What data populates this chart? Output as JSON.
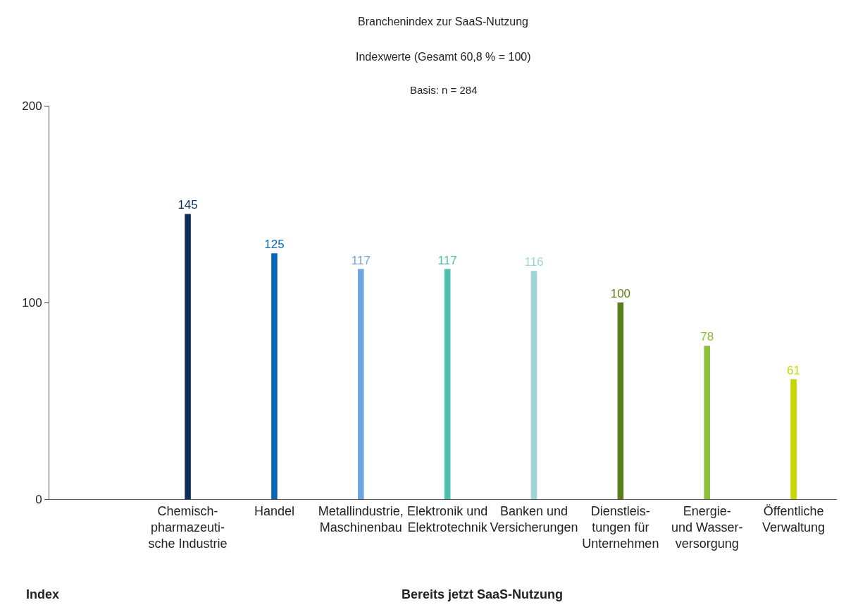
{
  "chart_data": {
    "type": "bar",
    "title": "Branchenindex zur SaaS-Nutzung",
    "subtitle": "Indexwerte (Gesamt 60,8 % = 100)",
    "annotations": [
      "Basis: n = 284"
    ],
    "xlabel": "Bereits jetzt SaaS-Nutzung",
    "ylabel": "Index",
    "categories": [
      "Chemisch-\npharmazeuti-\nsche Industrie",
      "Handel",
      "Metallindustrie,\nMaschinenbau",
      "Elektronik und\nElektrotechnik",
      "Banken und\nVersicherungen",
      "Dienstleis-\ntungen für\nUnternehmen",
      "Energie-\nund Wasser-\nversorgung",
      "Öffentliche\nVerwaltung"
    ],
    "values": [
      145,
      125,
      117,
      117,
      116,
      100,
      78,
      61
    ],
    "colors": [
      "#0b2f5a",
      "#0a66b8",
      "#6ea6de",
      "#4dbfaa",
      "#9dd5d6",
      "#5b7d1b",
      "#8cbf3a",
      "#c6d600"
    ],
    "data_labels": true,
    "ylim": [
      0,
      200
    ],
    "yticks": [
      0,
      100,
      200
    ]
  }
}
